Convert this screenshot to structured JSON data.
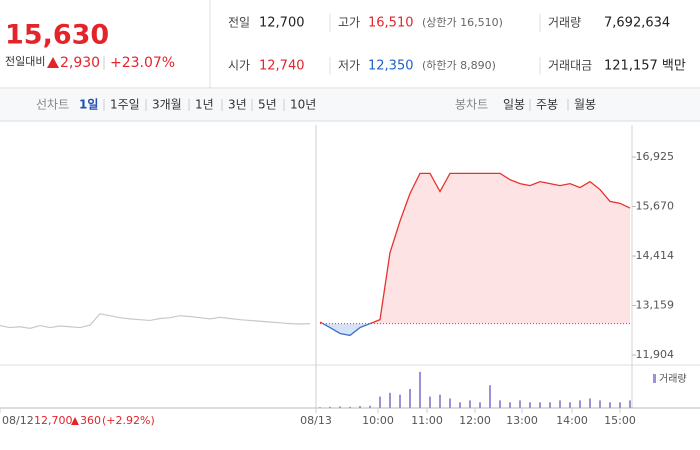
{
  "header": {
    "price": "15,630",
    "change_label": "전일대비",
    "change": "2,930",
    "change_rate": "+23.07%"
  },
  "summary": [
    {
      "label": "전일",
      "value": "12,700",
      "color": "#222222"
    },
    {
      "label": "고가",
      "value": "16,510",
      "color": "#e3242b",
      "sub": "(상한가 16,510)"
    },
    {
      "label": "거래량",
      "value": "7,692,634",
      "color": "#222222"
    },
    {
      "label": "시가",
      "value": "12,740",
      "color": "#e3242b"
    },
    {
      "label": "저가",
      "value": "12,350",
      "color": "#1f63c6",
      "sub": "(하한가 8,890)"
    },
    {
      "label": "거래대금",
      "value": "121,157 백만",
      "color": "#222222"
    }
  ],
  "tabs": {
    "line_label": "선차트",
    "line": [
      "1일",
      "1주일",
      "3개월",
      "1년",
      "3년",
      "5년",
      "10년"
    ],
    "selected": 0,
    "candle_label": "봉차트",
    "candle": [
      "일봉",
      "주봉",
      "월봉"
    ]
  },
  "chart_data": {
    "type": "line",
    "ylim": [
      11904,
      16925
    ],
    "yticks": [
      {
        "value": 16925,
        "label": "16,925"
      },
      {
        "value": 15670,
        "label": "15,670"
      },
      {
        "value": 14414,
        "label": "14,414"
      },
      {
        "value": 13159,
        "label": "13,159"
      },
      {
        "value": 11904,
        "label": "11,904"
      }
    ],
    "xlim": [
      0,
      63
    ],
    "xticks": [
      {
        "value": 0,
        "label": "08/12"
      },
      {
        "value": 31.6,
        "label": "08/13"
      },
      {
        "value": 37.8,
        "label": "10:00"
      },
      {
        "value": 42.7,
        "label": "11:00"
      },
      {
        "value": 47.5,
        "label": "12:00"
      },
      {
        "value": 52.2,
        "label": "13:00"
      },
      {
        "value": 57.2,
        "label": "14:00"
      },
      {
        "value": 62,
        "label": "15:00"
      }
    ],
    "baseline": 12700,
    "annotation": {
      "prev_price": "12,700",
      "prev_change": "360",
      "prev_rate": "(+2.92%)"
    },
    "series": [
      {
        "color": "#c8c8c8",
        "x": [
          0,
          1,
          2,
          3,
          4,
          5,
          6,
          7,
          8,
          9,
          10,
          11,
          12,
          13,
          14,
          15,
          16,
          17,
          18,
          19,
          20,
          21,
          22,
          23,
          24,
          25,
          26,
          27,
          28,
          29,
          30,
          31
        ],
        "values": [
          12650,
          12600,
          12620,
          12580,
          12650,
          12600,
          12640,
          12620,
          12600,
          12660,
          12950,
          12900,
          12850,
          12820,
          12800,
          12780,
          12830,
          12850,
          12900,
          12880,
          12850,
          12820,
          12860,
          12830,
          12800,
          12780,
          12760,
          12740,
          12720,
          12700,
          12690,
          12700
        ]
      },
      {
        "color": "#e8312f",
        "below_color": "#3a70c8",
        "fill": "#fde3e3",
        "below_fill": "#d6e2f5",
        "x": [
          32,
          33,
          34,
          35,
          36,
          37,
          38,
          39,
          40,
          41,
          42,
          43,
          44,
          45,
          46,
          47,
          48,
          49,
          50,
          51,
          52,
          53,
          54,
          55,
          56,
          57,
          58,
          59,
          60,
          61,
          62,
          63
        ],
        "values": [
          12740,
          12600,
          12450,
          12400,
          12600,
          12700,
          12800,
          14500,
          15300,
          16000,
          16510,
          16510,
          16050,
          16510,
          16510,
          16510,
          16510,
          16510,
          16510,
          16350,
          16250,
          16200,
          16300,
          16250,
          16200,
          16250,
          16150,
          16300,
          16100,
          15800,
          15750,
          15630
        ]
      }
    ],
    "volume": {
      "name": "거래량",
      "color": "#a08fd8",
      "lim": [
        0,
        1000000
      ],
      "x": [
        32,
        33,
        34,
        35,
        36,
        37,
        38,
        39,
        40,
        41,
        42,
        43,
        44,
        45,
        46,
        47,
        48,
        49,
        50,
        51,
        52,
        53,
        54,
        55,
        56,
        57,
        58,
        59,
        60,
        61,
        62,
        63
      ],
      "values": [
        20000,
        30000,
        40000,
        30000,
        50000,
        60000,
        300000,
        400000,
        350000,
        500000,
        950000,
        300000,
        350000,
        250000,
        150000,
        200000,
        150000,
        600000,
        200000,
        150000,
        200000,
        150000,
        150000,
        150000,
        200000,
        150000,
        200000,
        250000,
        200000,
        150000,
        150000,
        200000
      ]
    }
  }
}
